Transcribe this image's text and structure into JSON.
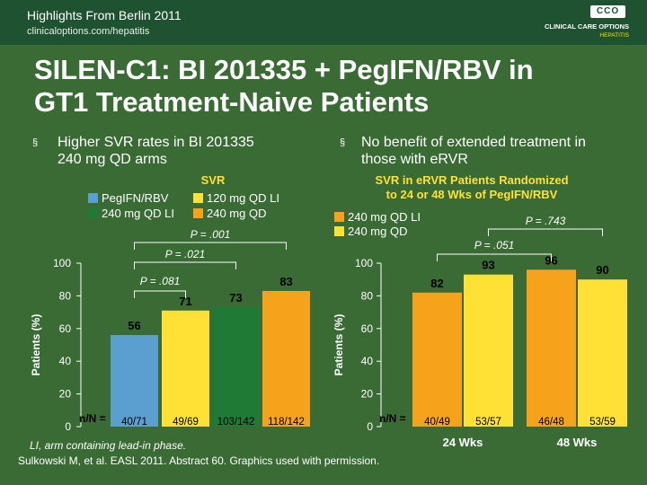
{
  "header": {
    "line1": "Highlights From Berlin 2011",
    "line2": "clinicaloptions.com/hepatitis",
    "logo_badge": "CCO",
    "logo_name": "CLINICAL CARE OPTIONS",
    "logo_sub": "HEPATITIS"
  },
  "title_line1": "SILEN-C1: BI 201335 + PegIFN/RBV in",
  "title_line2": "GT1 Treatment-Naive Patients",
  "bullets": {
    "mark": "§",
    "left_line1": "Higher SVR rates in BI 201335",
    "left_line2": "240 mg QD arms",
    "right_line1": "No benefit of extended treatment in",
    "right_line2": "those with eRVR"
  },
  "colors": {
    "background": "#3a6b35",
    "header_bar": "#1e5231",
    "bar_blue": "#5b9fd1",
    "bar_yellow": "#ffe135",
    "bar_orange": "#f7a21b",
    "bar_green": "#1e7a35",
    "sig_text": "#ffffff",
    "caption_text": "#000000"
  },
  "chart_data": [
    {
      "type": "bar",
      "title": "SVR",
      "ylabel": "Patients (%)",
      "ylim": [
        0,
        100
      ],
      "yticks": [
        "0",
        "20",
        "40",
        "60",
        "80",
        "100"
      ],
      "legend": [
        {
          "name": "PegIFN/RBV",
          "color": "#5b9fd1"
        },
        {
          "name": "120 mg QD LI",
          "color": "#ffe135"
        },
        {
          "name": "240 mg QD LI",
          "color": "#1e7a35"
        },
        {
          "name": "240 mg QD",
          "color": "#f7a21b"
        }
      ],
      "nn_label": "n/N =",
      "bars": [
        {
          "value": 56,
          "label": "56",
          "n": "40/71",
          "color": "#5b9fd1"
        },
        {
          "value": 71,
          "label": "71",
          "n": "49/69",
          "color": "#ffe135"
        },
        {
          "value": 73,
          "label": "73",
          "n": "103/142",
          "color": "#1e7a35"
        },
        {
          "value": 83,
          "label": "83",
          "n": "118/142",
          "color": "#f7a21b"
        }
      ],
      "significance": [
        {
          "label": "P = .001",
          "from": 0,
          "to": 3
        },
        {
          "label": "P = .021",
          "from": 0,
          "to": 2
        },
        {
          "label": "P = .081",
          "from": 0,
          "to": 1
        }
      ]
    },
    {
      "type": "bar",
      "title_line1": "SVR in eRVR Patients Randomized",
      "title_line2": "to 24 or 48 Wks of PegIFN/RBV",
      "ylabel": "Patients (%)",
      "ylim": [
        0,
        100
      ],
      "yticks": [
        "0",
        "20",
        "40",
        "60",
        "80",
        "100"
      ],
      "legend": [
        {
          "name": "240 mg QD LI",
          "color": "#f7a21b"
        },
        {
          "name": "240 mg QD",
          "color": "#ffe135"
        }
      ],
      "nn_label": "n/N =",
      "groups": [
        {
          "label": "24 Wks",
          "bars": [
            {
              "value": 82,
              "label": "82",
              "n": "40/49",
              "color": "#f7a21b"
            },
            {
              "value": 93,
              "label": "93",
              "n": "53/57",
              "color": "#ffe135"
            }
          ]
        },
        {
          "label": "48 Wks",
          "bars": [
            {
              "value": 96,
              "label": "96",
              "n": "46/48",
              "color": "#f7a21b"
            },
            {
              "value": 90,
              "label": "90",
              "n": "53/59",
              "color": "#ffe135"
            }
          ]
        }
      ],
      "significance": [
        {
          "label": "P = .743",
          "bars": [
            1,
            3
          ]
        },
        {
          "label": "P = .051",
          "bars": [
            0,
            2
          ]
        }
      ]
    }
  ],
  "footnote": "LI, arm containing lead-in phase.",
  "citation": "Sulkowski M, et al. EASL 2011. Abstract 60. Graphics used with permission."
}
